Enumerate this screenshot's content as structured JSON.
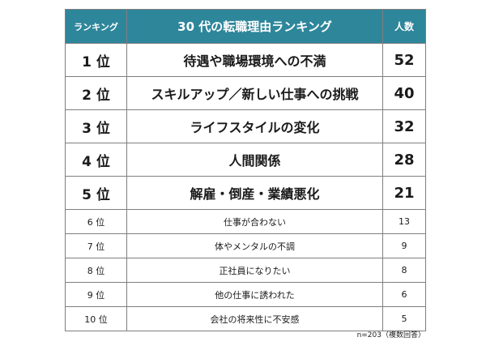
{
  "table": {
    "headers": {
      "rank": "ランキング",
      "title": "30 代の転職理由ランキング",
      "count": "人数"
    },
    "rows": [
      {
        "rank": "1 位",
        "reason": "待遇や職場環境への不満",
        "count": "52"
      },
      {
        "rank": "2 位",
        "reason": "スキルアップ／新しい仕事への挑戦",
        "count": "40"
      },
      {
        "rank": "3 位",
        "reason": "ライフスタイルの変化",
        "count": "32"
      },
      {
        "rank": "4 位",
        "reason": "人間関係",
        "count": "28"
      },
      {
        "rank": "5 位",
        "reason": "解雇・倒産・業績悪化",
        "count": "21"
      },
      {
        "rank": "6 位",
        "reason": "仕事が合わない",
        "count": "13"
      },
      {
        "rank": "7 位",
        "reason": "体やメンタルの不調",
        "count": "9"
      },
      {
        "rank": "8 位",
        "reason": "正社員になりたい",
        "count": "8"
      },
      {
        "rank": "9 位",
        "reason": "他の仕事に誘われた",
        "count": "6"
      },
      {
        "rank": "10 位",
        "reason": "会社の将来性に不安感",
        "count": "5"
      }
    ]
  },
  "note": "n=203（複数回答）",
  "colors": {
    "header_bg": "#2e869b",
    "header_text": "#ffffff",
    "border": "#7f7f7f"
  }
}
